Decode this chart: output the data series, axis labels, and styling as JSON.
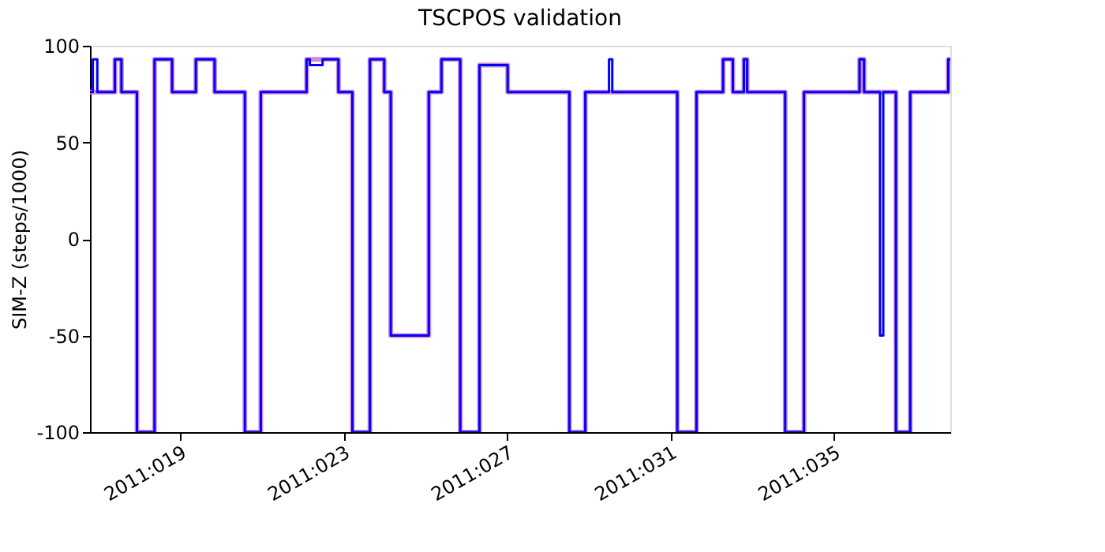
{
  "chart_data": {
    "type": "step",
    "title": "TSCPOS validation",
    "ylabel": "SIM-Z (steps/1000)",
    "x": [
      "2011-01-16T19:12",
      "2011-01-16T20:53",
      "2011-01-16T23:31",
      "2011-01-17T09:50",
      "2011-01-17T13:41",
      "2011-01-17T22:48",
      "2011-01-18T09:07",
      "2011-01-18T19:26",
      "2011-01-19T09:22",
      "2011-01-19T20:24",
      "2011-01-20T14:10",
      "2011-01-20T23:31",
      "2011-01-22T02:24",
      "2011-01-22T04:19",
      "2011-01-22T11:46",
      "2011-01-22T21:07",
      "2011-01-23T05:17",
      "2011-01-23T15:36",
      "2011-01-24T00:00",
      "2011-01-24T03:50",
      "2011-01-25T02:10",
      "2011-01-25T09:36",
      "2011-01-25T20:38",
      "2011-01-26T07:55",
      "2011-01-27T00:29",
      "2011-01-28T12:43",
      "2011-01-28T22:05",
      "2011-01-29T12:00",
      "2011-01-29T13:55",
      "2011-01-31T04:05",
      "2011-01-31T15:22",
      "2011-02-01T06:58",
      "2011-02-01T12:43",
      "2011-02-01T19:12",
      "2011-02-01T21:07",
      "2011-02-02T19:26",
      "2011-02-03T06:29",
      "2011-02-04T15:07",
      "2011-02-04T17:46",
      "2011-02-05T03:07",
      "2011-02-05T05:02",
      "2011-02-05T12:29",
      "2011-02-05T20:53",
      "2011-02-06T19:12",
      "2011-02-06T20:24"
    ],
    "series": [
      {
        "color": "#d08ad0",
        "values": [
          76,
          76,
          76,
          93,
          76,
          -100,
          93,
          76,
          93,
          76,
          -100,
          76,
          93,
          93,
          93,
          76,
          -100,
          93,
          76,
          -50,
          76,
          93,
          -100,
          90,
          76,
          -100,
          76,
          76,
          76,
          -100,
          76,
          93,
          76,
          93,
          76,
          -100,
          76,
          93,
          76,
          76,
          76,
          -100,
          76,
          93,
          93
        ]
      },
      {
        "color": "#0000ff",
        "values": [
          76,
          93,
          76,
          93,
          76,
          -100,
          93,
          76,
          93,
          76,
          -100,
          76,
          93,
          90,
          93,
          76,
          -100,
          93,
          76,
          -50,
          76,
          93,
          -100,
          90,
          76,
          -100,
          76,
          93,
          76,
          -100,
          76,
          93,
          76,
          93,
          76,
          -100,
          76,
          93,
          76,
          -50,
          76,
          -100,
          76,
          93,
          93
        ]
      }
    ],
    "xlim": [
      "2011-01-16T19:12",
      "2011-02-06T20:24"
    ],
    "xticks": [
      {
        "value": "2011-01-19",
        "label": "2011:019"
      },
      {
        "value": "2011-01-23",
        "label": "2011:023"
      },
      {
        "value": "2011-01-27",
        "label": "2011:027"
      },
      {
        "value": "2011-01-31",
        "label": "2011:031"
      },
      {
        "value": "2011-02-04",
        "label": "2011:035"
      }
    ],
    "ylim": [
      -100,
      100
    ],
    "yticks": [
      -100,
      -50,
      0,
      50,
      100
    ],
    "grid": false,
    "legend": false
  }
}
